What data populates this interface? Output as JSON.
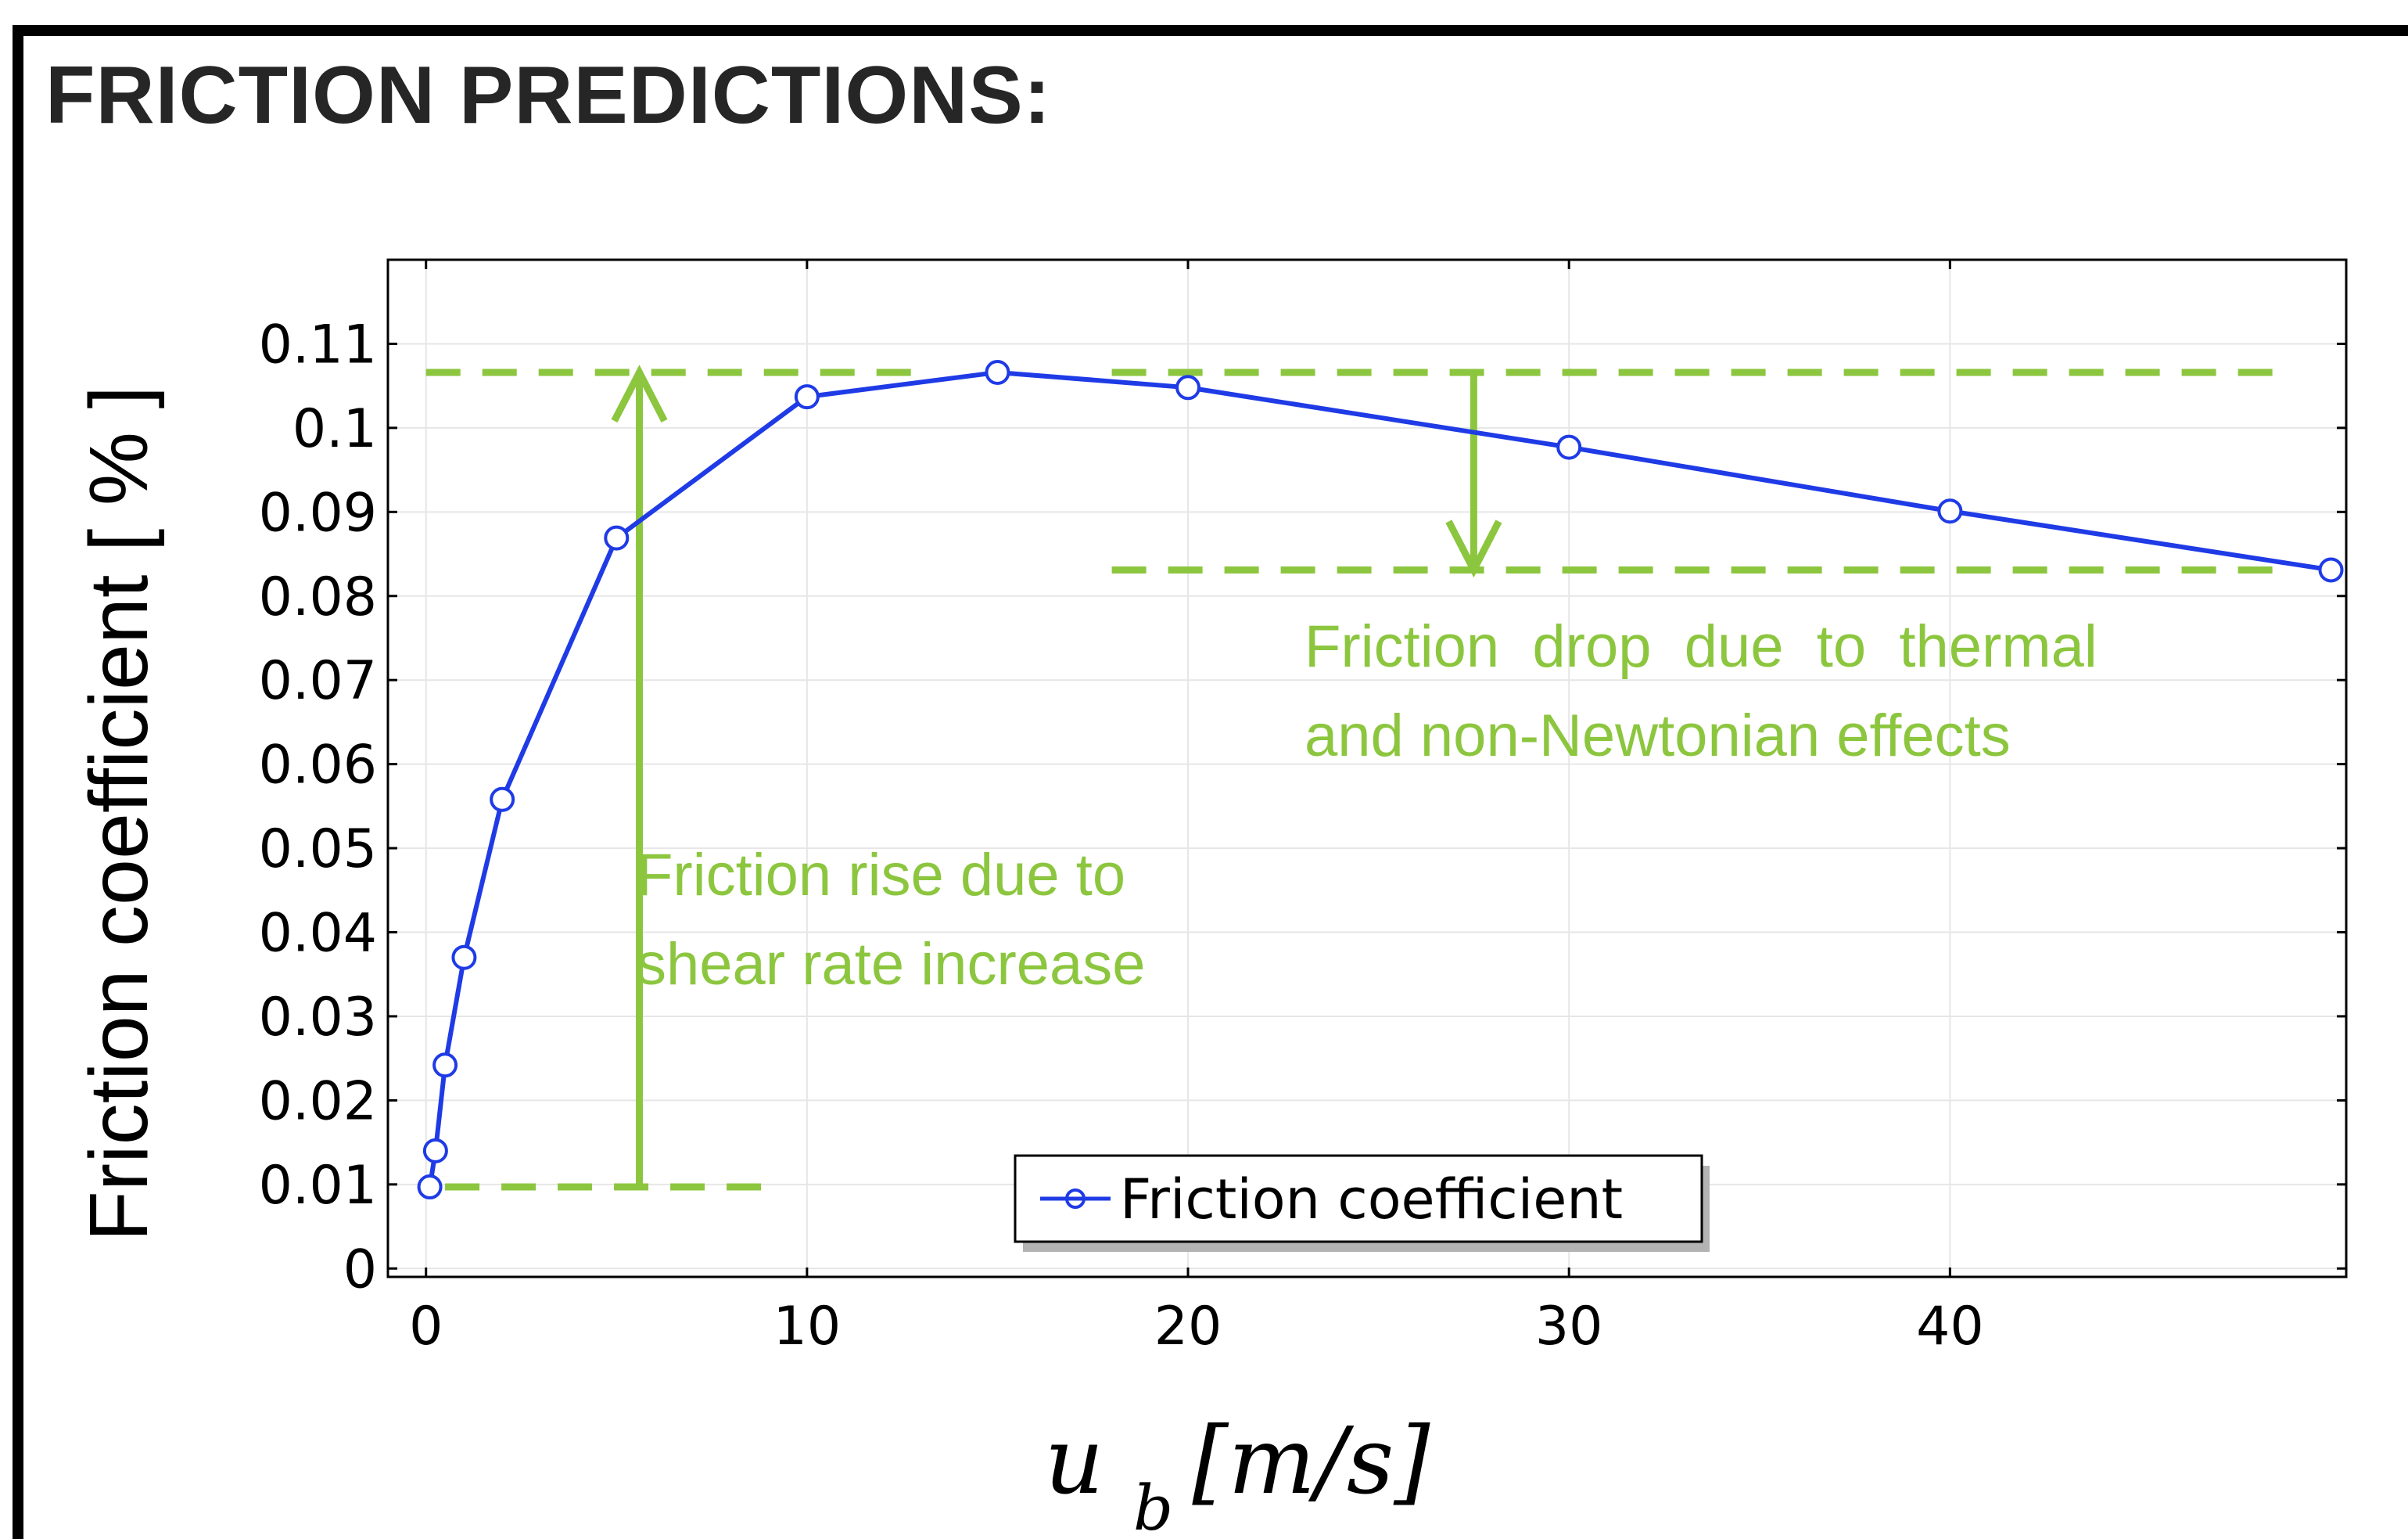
{
  "header": {
    "title": "FRICTION PREDICTIONS:"
  },
  "chart_data": {
    "type": "line",
    "title": "",
    "xlabel": "u_b [m/s]",
    "ylabel": "Friction coefficient [ % ]",
    "xlim": [
      -1,
      50.4
    ],
    "ylim": [
      -0.001,
      0.12
    ],
    "x_ticks": [
      0,
      10,
      20,
      30,
      40
    ],
    "x_tick_labels": [
      "0",
      "10",
      "20",
      "30",
      "40"
    ],
    "y_ticks": [
      0,
      0.01,
      0.02,
      0.03,
      0.04,
      0.05,
      0.06,
      0.07,
      0.08,
      0.09,
      0.1,
      0.11
    ],
    "y_tick_labels": [
      "0",
      "0.01",
      "0.02",
      "0.03",
      "0.04",
      "0.05",
      "0.06",
      "0.07",
      "0.08",
      "0.09",
      "0.1",
      "0.11"
    ],
    "grid": true,
    "legend_position": "bottom-center",
    "series": [
      {
        "name": "Friction coefficient",
        "color": "#1f3be6",
        "marker": "circle",
        "x": [
          0.1,
          0.25,
          0.5,
          1,
          2,
          5,
          10,
          15,
          20,
          30,
          40,
          50
        ],
        "y": [
          0.0097,
          0.014,
          0.0242,
          0.037,
          0.0558,
          0.0869,
          0.1037,
          0.1066,
          0.1048,
          0.0977,
          0.0901,
          0.0831
        ]
      }
    ],
    "reference_lines": [
      {
        "value": 0.1066,
        "from_x": 0,
        "to_x": 13,
        "color": "#8cc63f"
      },
      {
        "value": 0.1066,
        "from_x": 18,
        "to_x": 48.5,
        "color": "#8cc63f"
      },
      {
        "value": 0.0831,
        "from_x": 18,
        "to_x": 48.5,
        "color": "#8cc63f"
      },
      {
        "value": 0.0097,
        "from_x": 0.5,
        "to_x": 9,
        "color": "#8cc63f"
      }
    ],
    "arrows": [
      {
        "x": 5.6,
        "from_y": 0.0097,
        "to_y": 0.1066,
        "color": "#8cc63f"
      },
      {
        "x": 27.5,
        "from_y": 0.1066,
        "to_y": 0.0831,
        "color": "#8cc63f"
      }
    ],
    "annotations": [
      {
        "lines": [
          "Friction rise due to",
          "shear rate increase"
        ],
        "color": "#8cc63f"
      },
      {
        "lines": [
          "Friction  drop  due  to  thermal",
          "and non-Newtonian effects"
        ],
        "color": "#8cc63f"
      }
    ]
  }
}
